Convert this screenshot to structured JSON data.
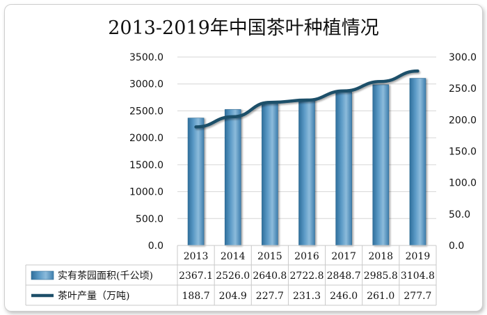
{
  "chart_data": {
    "type": "bar+line",
    "title": "2013-2019年中国茶叶种植情况",
    "categories": [
      "2013",
      "2014",
      "2015",
      "2016",
      "2017",
      "2018",
      "2019"
    ],
    "series": [
      {
        "name": "实有茶园面积(千公顷)",
        "type": "bar",
        "axis": "left",
        "values": [
          2367.1,
          2526.0,
          2640.8,
          2722.8,
          2848.7,
          2985.8,
          3104.8
        ],
        "color": "#4f8fbd"
      },
      {
        "name": "茶叶产量（万吨)",
        "type": "line",
        "axis": "right",
        "values": [
          188.7,
          204.9,
          227.7,
          231.3,
          246.0,
          261.0,
          277.7
        ],
        "color": "#1d4f69"
      }
    ],
    "y_left": {
      "min": 0,
      "max": 3500,
      "step": 500,
      "tick_labels": [
        "0.0",
        "500.0",
        "1000.0",
        "1500.0",
        "2000.0",
        "2500.0",
        "3000.0",
        "3500.0"
      ]
    },
    "y_right": {
      "min": 0,
      "max": 300,
      "step": 50,
      "tick_labels": [
        "0.0",
        "50.0",
        "100.0",
        "150.0",
        "200.0",
        "250.0",
        "300.0"
      ]
    },
    "grid": true,
    "data_table": true,
    "table_values": {
      "bar": [
        "2367.1",
        "2526.0",
        "2640.8",
        "2722.8",
        "2848.7",
        "2985.8",
        "3104.8"
      ],
      "line": [
        "188.7",
        "204.9",
        "227.7",
        "231.3",
        "246.0",
        "261.0",
        "277.7"
      ]
    }
  }
}
